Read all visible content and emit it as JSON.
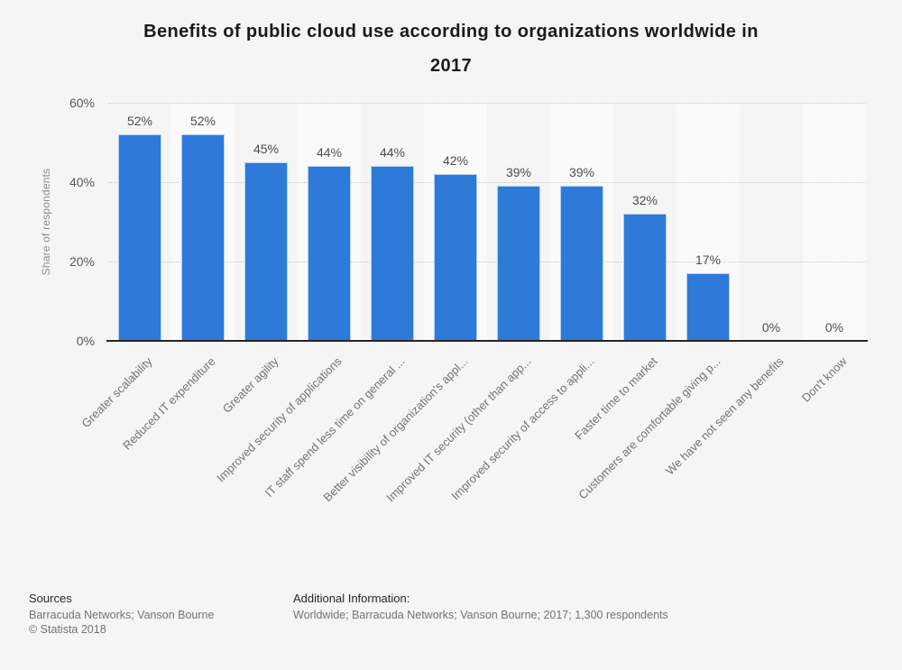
{
  "page_background": "#f5f5f5",
  "title_lines": [
    "Benefits of public cloud use according to organizations worldwide in",
    "2017"
  ],
  "chart_data": {
    "type": "bar",
    "title": "Benefits of public cloud use according to organizations worldwide in 2017",
    "categories": [
      "Greater scalability",
      "Reduced IT expenditure",
      "Greater agility",
      "Improved security of applications",
      "IT staff spend less time on general ...",
      "Better visibility of organization's appl...",
      "Improved IT security (other than app...",
      "Improved security of access to appli...",
      "Faster time to market",
      "Customers are comfortable giving p...",
      "We have not seen any benefits",
      "Don't know"
    ],
    "values": [
      52,
      52,
      45,
      44,
      44,
      42,
      39,
      39,
      32,
      17,
      0,
      0
    ],
    "data_labels": [
      "52%",
      "52%",
      "45%",
      "44%",
      "44%",
      "42%",
      "39%",
      "39%",
      "32%",
      "17%",
      "0%",
      "0%"
    ],
    "xlabel": "",
    "ylabel": "Share of respondents",
    "ylim": [
      0,
      60
    ],
    "yticks": [
      {
        "value": 0,
        "label": "0%"
      },
      {
        "value": 20,
        "label": "20%"
      },
      {
        "value": 40,
        "label": "40%"
      },
      {
        "value": 60,
        "label": "60%"
      }
    ],
    "grid": "dotted horizontal lines at 20%, 40%, 60%; alternating vertical plot bands",
    "legend": "none",
    "colors": {
      "bar": "#2d7ad8",
      "axis_line": "#262626",
      "gridline": "#c9c9c9",
      "plot_band_alt": "#fafafa",
      "value_label": "#4d4d4d",
      "category_label": "#737373",
      "tick_label": "#595959",
      "axis_title": "#8c8c8c"
    }
  },
  "footer": {
    "sources_heading": "Sources",
    "sources_line": "Barracuda Networks; Vanson Bourne",
    "copyright": "© Statista 2018",
    "additional_heading": "Additional Information:",
    "additional_line": "Worldwide; Barracuda Networks; Vanson Bourne; 2017; 1,300 respondents"
  }
}
